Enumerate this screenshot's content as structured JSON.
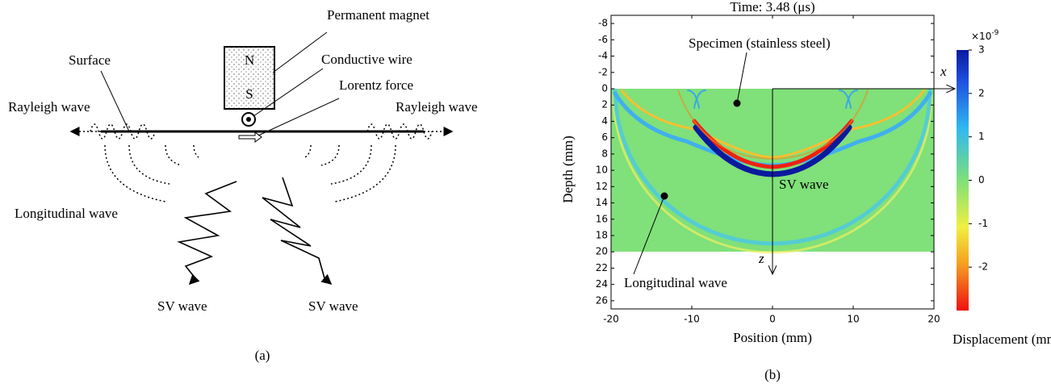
{
  "panel_a": {
    "caption": "(a)",
    "labels": {
      "permanent_magnet": "Permanent magnet",
      "north": "N",
      "south": "S",
      "surface": "Surface",
      "conductive_wire": "Conductive wire",
      "lorentz_force": "Lorentz  force",
      "rayleigh_left": "Rayleigh wave",
      "rayleigh_right": "Rayleigh wave",
      "longitudinal": "Longitudinal wave",
      "sv_left": "SV wave",
      "sv_right": "SV wave"
    }
  },
  "panel_b": {
    "caption": "(b)",
    "title": "Time: 3.48 (μs)",
    "xlabel": "Position (mm)",
    "ylabel": "Depth (mm)",
    "xlim": [
      -20,
      20
    ],
    "ylim": [
      -9,
      27
    ],
    "xticks": [
      -20,
      -10,
      0,
      10,
      20
    ],
    "yticks": [
      -8,
      -6,
      -4,
      -2,
      0,
      2,
      4,
      6,
      8,
      10,
      12,
      14,
      16,
      18,
      20,
      22,
      24,
      26
    ],
    "axis_x": "x",
    "axis_z": "z",
    "annotations": {
      "specimen": "Specimen (stainless steel)",
      "sv_wave": "SV wave",
      "longitudinal": "Longitudinal wave"
    },
    "colorbar": {
      "lim": [
        -3,
        3
      ],
      "ticks": [
        -2,
        -1,
        0,
        1,
        2,
        3
      ],
      "multiplier": "×10",
      "exponent": "-9",
      "label": "Displacement (mm)"
    }
  }
}
